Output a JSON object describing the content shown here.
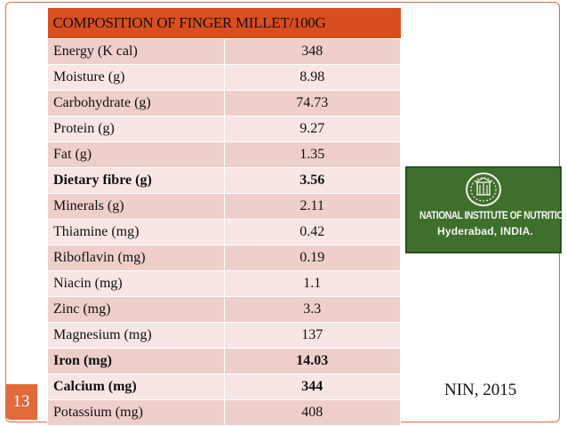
{
  "slide": {
    "page_number": "13",
    "citation": "NIN, 2015",
    "accent_color": "#e06a3b"
  },
  "table": {
    "header": "COMPOSITION OF FINGER MILLET/100G",
    "rows": [
      {
        "name": "Energy (K cal)",
        "value": "348"
      },
      {
        "name": "Moisture (g)",
        "value": "8.98"
      },
      {
        "name": "Carbohydrate (g)",
        "value": "74.73"
      },
      {
        "name": "Protein (g)",
        "value": "9.27"
      },
      {
        "name": "Fat (g)",
        "value": "1.35"
      },
      {
        "name": "Dietary fibre (g)",
        "value": "3.56"
      },
      {
        "name": "Minerals (g)",
        "value": "2.11"
      },
      {
        "name": "Thiamine (mg)",
        "value": "0.42"
      },
      {
        "name": "Riboflavin (mg)",
        "value": "0.19"
      },
      {
        "name": "Niacin (mg)",
        "value": "1.1"
      },
      {
        "name": "Zinc (mg)",
        "value": "3.3"
      },
      {
        "name": "Magnesium  (mg)",
        "value": "137"
      },
      {
        "name": "Iron  (mg)",
        "value": "14.03"
      },
      {
        "name": "Calcium (mg)",
        "value": "344"
      },
      {
        "name": "Potassium (mg)",
        "value": "408"
      }
    ]
  },
  "logo": {
    "line1": "NATIONAL INSTITUTE OF NUTRITION",
    "line2": "Hyderabad, INDIA."
  }
}
